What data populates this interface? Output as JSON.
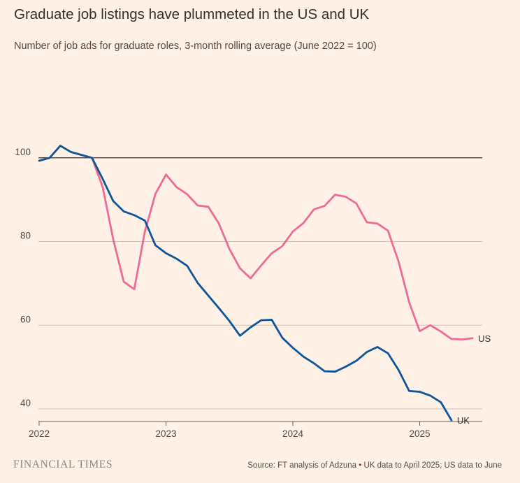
{
  "title": "Graduate job listings have plummeted in the US and UK",
  "subtitle": "Number of job ads for graduate roles, 3-month rolling average (June 2022 = 100)",
  "brand": "FINANCIAL TIMES",
  "source": "Source: FT analysis of Adzuna • UK data to April 2025; US data to June",
  "colors": {
    "background": "#fff1e5",
    "uk": "#0f5499",
    "us": "#ef6b97",
    "reference": "#33302e",
    "grid": "#ccc1b7"
  },
  "chart_data": {
    "type": "line",
    "xlabel": "",
    "ylabel": "",
    "xlim": [
      "2022-01",
      "2025-06"
    ],
    "ylim": [
      37,
      118
    ],
    "x_ticks": [
      "2022",
      "2023",
      "2024",
      "2025"
    ],
    "y_ticks": [
      40,
      60,
      80,
      100
    ],
    "reference_line": 100,
    "grid": "horizontal",
    "series": [
      {
        "name": "UK",
        "x": [
          "2022-01",
          "2022-02",
          "2022-03",
          "2022-04",
          "2022-05",
          "2022-06",
          "2022-07",
          "2022-08",
          "2022-09",
          "2022-10",
          "2022-11",
          "2022-12",
          "2023-01",
          "2023-02",
          "2023-03",
          "2023-04",
          "2023-05",
          "2023-06",
          "2023-07",
          "2023-08",
          "2023-09",
          "2023-10",
          "2023-11",
          "2023-12",
          "2024-01",
          "2024-02",
          "2024-03",
          "2024-04",
          "2024-05",
          "2024-06",
          "2024-07",
          "2024-08",
          "2024-09",
          "2024-10",
          "2024-11",
          "2024-12",
          "2025-01",
          "2025-02",
          "2025-03",
          "2025-04"
        ],
        "values": [
          99.3,
          100.0,
          102.9,
          101.4,
          100.7,
          100.0,
          95.0,
          89.7,
          87.2,
          86.3,
          85.0,
          79.1,
          77.2,
          75.9,
          74.2,
          70.1,
          67.1,
          64.1,
          61.0,
          57.5,
          59.5,
          61.2,
          61.3,
          57.0,
          54.6,
          52.5,
          50.9,
          49.0,
          48.9,
          50.1,
          51.5,
          53.6,
          54.8,
          53.3,
          49.3,
          44.3,
          44.1,
          43.2,
          41.6,
          37.3
        ]
      },
      {
        "name": "US",
        "x": [
          "2022-05",
          "2022-06",
          "2022-07",
          "2022-08",
          "2022-09",
          "2022-10",
          "2022-11",
          "2022-12",
          "2023-01",
          "2023-02",
          "2023-03",
          "2023-04",
          "2023-05",
          "2023-06",
          "2023-07",
          "2023-08",
          "2023-09",
          "2023-10",
          "2023-11",
          "2023-12",
          "2024-01",
          "2024-02",
          "2024-03",
          "2024-04",
          "2024-05",
          "2024-06",
          "2024-07",
          "2024-08",
          "2024-09",
          "2024-10",
          "2024-11",
          "2024-12",
          "2025-01",
          "2025-02",
          "2025-03",
          "2025-04",
          "2025-05",
          "2025-06"
        ],
        "values": [
          100.7,
          100.0,
          93.1,
          80.6,
          70.4,
          68.6,
          82.4,
          91.4,
          96.0,
          93.0,
          91.3,
          88.6,
          88.3,
          84.3,
          78.2,
          73.6,
          71.2,
          74.3,
          77.2,
          78.9,
          82.4,
          84.4,
          87.7,
          88.5,
          91.2,
          90.7,
          89.1,
          84.6,
          84.3,
          82.6,
          75.2,
          65.5,
          58.6,
          60.0,
          58.5,
          56.7,
          56.6,
          56.9
        ]
      }
    ]
  }
}
